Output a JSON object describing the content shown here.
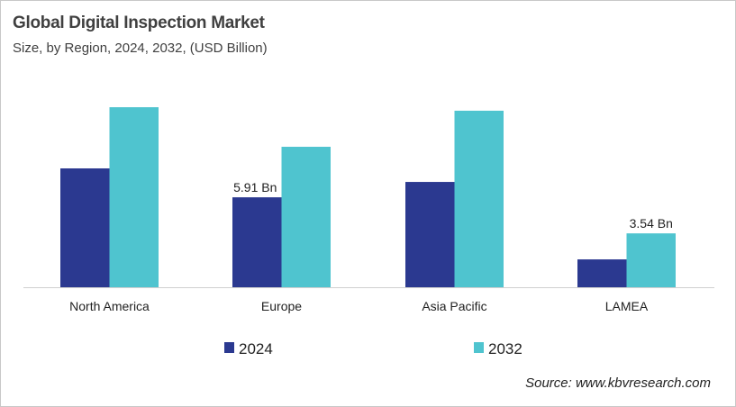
{
  "chart_data": {
    "type": "bar",
    "title": "Global Digital Inspection Market",
    "subtitle": "Size, by Region, 2024, 2032, (USD Billion)",
    "categories": [
      "North America",
      "Europe",
      "Asia Pacific",
      "LAMEA"
    ],
    "series": [
      {
        "name": "2024",
        "color": "#2B3990",
        "values": [
          7.81,
          5.91,
          6.92,
          1.83
        ]
      },
      {
        "name": "2032",
        "color": "#4FC4CF",
        "values": [
          11.83,
          9.23,
          11.6,
          3.54
        ]
      }
    ],
    "data_labels": [
      {
        "series": 0,
        "category": 1,
        "text": "5.91 Bn"
      },
      {
        "series": 1,
        "category": 3,
        "text": "3.54 Bn"
      }
    ],
    "ylim": [
      0,
      12.5
    ],
    "grid": false,
    "legend": "bottom-center",
    "source": "Source: www.kbvresearch.com"
  }
}
